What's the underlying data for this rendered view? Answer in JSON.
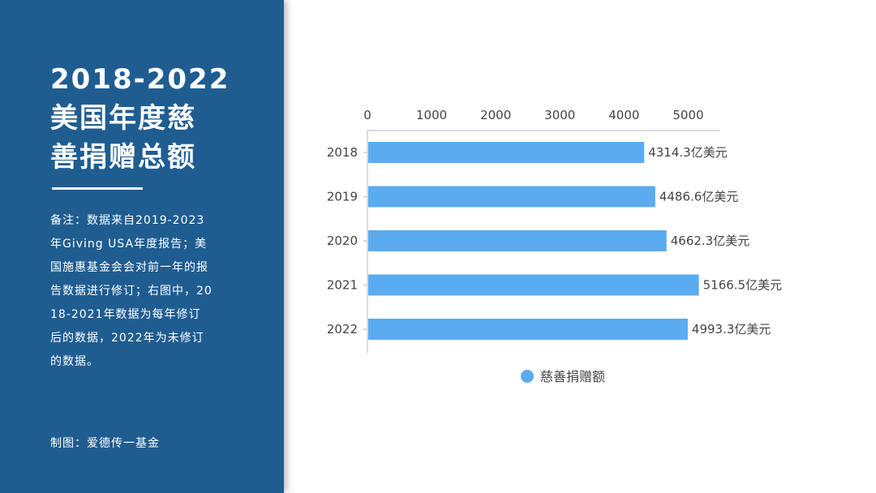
{
  "sidebar": {
    "title_lines": [
      "2018-2022",
      "美国年度慈",
      "善捐赠总额"
    ],
    "note": "备注：数据来自2019-2023年Giving USA年度报告；美国施惠基金会会对前一年的报告数据进行修订；右图中，2018-2021年数据为每年修订后的数据，2022年为未修订的数据。",
    "credit": "制图：爱德传一基金"
  },
  "colors": {
    "panel": "#1f5d91",
    "bar": "#5aabf0",
    "axis": "#cfcfcf",
    "text": "#444444"
  },
  "chart_data": {
    "type": "bar",
    "orientation": "horizontal",
    "categories": [
      "2018",
      "2019",
      "2020",
      "2021",
      "2022"
    ],
    "series": [
      {
        "name": "慈善捐赠额",
        "values": [
          4314.3,
          4486.6,
          4662.3,
          5166.5,
          4993.3
        ]
      }
    ],
    "data_labels": [
      "4314.3亿美元",
      "4486.6亿美元",
      "4662.3亿美元",
      "5166.5亿美元",
      "4993.3亿美元"
    ],
    "x_ticks": [
      "0",
      "1000",
      "2000",
      "3000",
      "4000",
      "5000"
    ],
    "xlim": [
      0,
      5500
    ],
    "x_axis_position": "top",
    "grid": false,
    "legend": "bottom"
  }
}
